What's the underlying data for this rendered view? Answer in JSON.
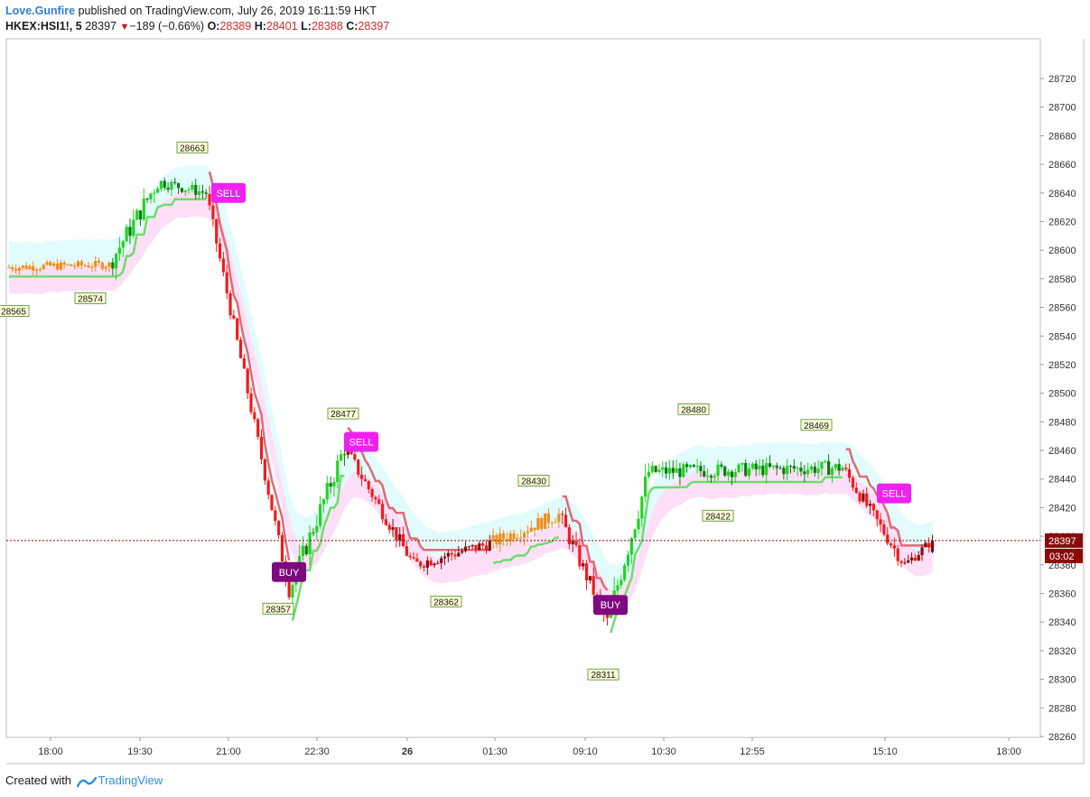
{
  "header": {
    "author": "Love.Gunfire",
    "published": "published on TradingView.com, July 26, 2019 16:11:59 HKT",
    "symbol": "HKEX:HSI1!, 5",
    "last": "28397",
    "change": "−189 (−0.66%)",
    "o_label": "O:",
    "o": "28389",
    "h_label": "H:",
    "h": "28401",
    "l_label": "L:",
    "l": "28388",
    "c_label": "C:",
    "c": "28397"
  },
  "footer": {
    "created": "Created with",
    "brand": "TradingView"
  },
  "colors": {
    "bull": "#22d322",
    "bull_dark": "#0e7a0e",
    "bear": "#ef1c1c",
    "bear_dark": "#8b0a0a",
    "neutral": "#f58c1c",
    "trail_up": "#6fdc6f",
    "trail_down": "#e06a78",
    "cloud_upper": "#e2fbfb",
    "cloud_lower": "#fde0f7",
    "sell_badge": "#ee22ee",
    "buy_badge": "#7e0a80",
    "price_tag": "#8b0a0a"
  },
  "chart_data": {
    "type": "candlestick",
    "title": "",
    "ylim": [
      28260,
      28730
    ],
    "y_ticks": [
      28260,
      28280,
      28300,
      28320,
      28340,
      28360,
      28380,
      28400,
      28420,
      28440,
      28460,
      28480,
      28500,
      28520,
      28540,
      28560,
      28580,
      28600,
      28620,
      28640,
      28660,
      28680,
      28700,
      28720
    ],
    "x_ticks": [
      "18:00",
      "19:30",
      "21:00",
      "22:30",
      "26",
      "01:30",
      "09:10",
      "10:30",
      "12:55",
      "15:10",
      "18:00"
    ],
    "last_price": "28397",
    "countdown": "03:02",
    "swing_labels": [
      {
        "value": "28663",
        "type": "high"
      },
      {
        "value": "28574",
        "type": "low"
      },
      {
        "value": "28565",
        "type": "low"
      },
      {
        "value": "28477",
        "type": "high"
      },
      {
        "value": "28357",
        "type": "low"
      },
      {
        "value": "28430",
        "type": "high"
      },
      {
        "value": "28362",
        "type": "low"
      },
      {
        "value": "28311",
        "type": "low"
      },
      {
        "value": "28480",
        "type": "high"
      },
      {
        "value": "28422",
        "type": "low"
      },
      {
        "value": "28469",
        "type": "high"
      }
    ],
    "signals": [
      {
        "label": "SELL",
        "price": 28640
      },
      {
        "label": "BUY",
        "price": 28375
      },
      {
        "label": "SELL",
        "price": 28466
      },
      {
        "label": "BUY",
        "price": 28352
      },
      {
        "label": "SELL",
        "price": 28430
      }
    ],
    "segments": [
      {
        "from": 28588,
        "to": 28590,
        "n": 30,
        "amp": 6,
        "trend": "flat"
      },
      {
        "from": 28590,
        "to": 28648,
        "n": 14,
        "amp": 14,
        "trend": "up"
      },
      {
        "from": 28648,
        "to": 28640,
        "n": 14,
        "amp": 8,
        "trend": "up"
      },
      {
        "from": 28640,
        "to": 28362,
        "n": 24,
        "amp": 10,
        "trend": "down"
      },
      {
        "from": 28362,
        "to": 28462,
        "n": 16,
        "amp": 14,
        "trend": "up"
      },
      {
        "from": 28462,
        "to": 28380,
        "n": 20,
        "amp": 10,
        "trend": "down"
      },
      {
        "from": 28380,
        "to": 28395,
        "n": 22,
        "amp": 9,
        "trend": "down"
      },
      {
        "from": 28395,
        "to": 28415,
        "n": 20,
        "amp": 10,
        "trend": "flat"
      },
      {
        "from": 28415,
        "to": 28340,
        "n": 14,
        "amp": 12,
        "trend": "down"
      },
      {
        "from": 28340,
        "to": 28445,
        "n": 12,
        "amp": 16,
        "trend": "up"
      },
      {
        "from": 28445,
        "to": 28448,
        "n": 56,
        "amp": 10,
        "trend": "up"
      },
      {
        "from": 28448,
        "to": 28380,
        "n": 18,
        "amp": 10,
        "trend": "down"
      },
      {
        "from": 28380,
        "to": 28397,
        "n": 8,
        "amp": 7,
        "trend": "down"
      }
    ]
  }
}
